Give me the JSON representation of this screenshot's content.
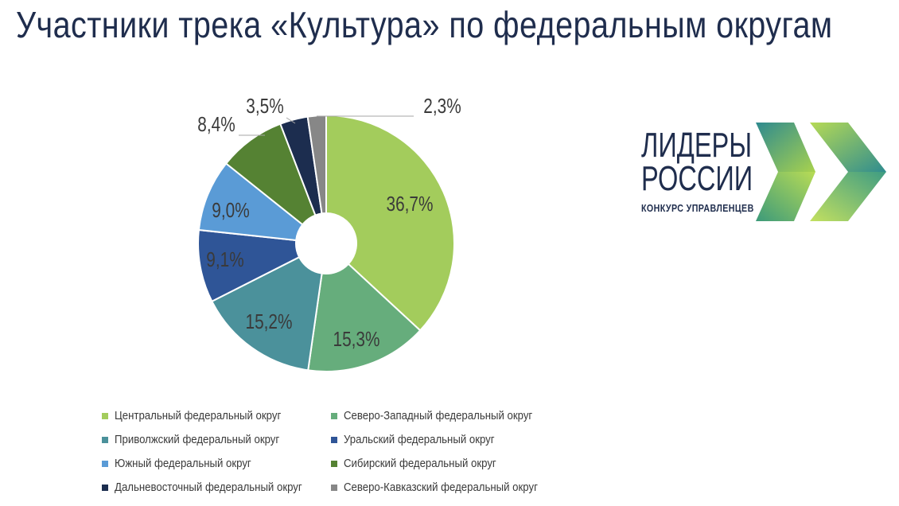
{
  "title": "Участники трека «Культура» по федеральным округам",
  "logo": {
    "line1": "ЛИДЕРЫ",
    "line2": "РОССИИ",
    "tagline": "КОНКУРС УПРАВЛЕНЦЕВ"
  },
  "chart_data": {
    "type": "pie",
    "variant": "donut",
    "title": "",
    "series": [
      {
        "name": "Центральный федеральный округ",
        "value": 36.7,
        "label": "36,7%",
        "color": "#a3cc5c"
      },
      {
        "name": "Северо-Западный федеральный округ",
        "value": 15.3,
        "label": "15,3%",
        "color": "#66ad7c"
      },
      {
        "name": "Приволжский федеральный округ",
        "value": 15.2,
        "label": "15,2%",
        "color": "#4b919b"
      },
      {
        "name": "Уральский федеральный округ",
        "value": 9.1,
        "label": "9,1%",
        "color": "#2f5597"
      },
      {
        "name": "Южный федеральный округ",
        "value": 9.0,
        "label": "9,0%",
        "color": "#5a9bd6"
      },
      {
        "name": "Сибирский федеральный округ",
        "value": 8.4,
        "label": "8,4%",
        "color": "#558233"
      },
      {
        "name": "Дальневосточный федеральный округ",
        "value": 3.5,
        "label": "3,5%",
        "color": "#1c2d4f"
      },
      {
        "name": "Северо-Кавказский федеральный округ",
        "value": 2.3,
        "label": "2,3%",
        "color": "#878787"
      }
    ],
    "legend_position": "bottom"
  }
}
